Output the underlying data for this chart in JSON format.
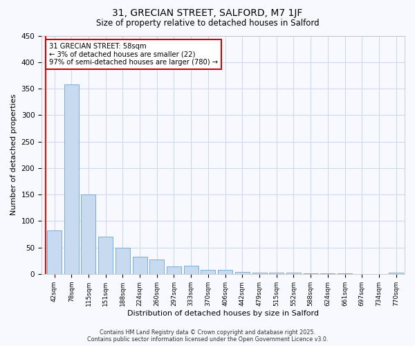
{
  "title1": "31, GRECIAN STREET, SALFORD, M7 1JF",
  "title2": "Size of property relative to detached houses in Salford",
  "xlabel": "Distribution of detached houses by size in Salford",
  "ylabel": "Number of detached properties",
  "categories": [
    "42sqm",
    "78sqm",
    "115sqm",
    "151sqm",
    "188sqm",
    "224sqm",
    "260sqm",
    "297sqm",
    "333sqm",
    "370sqm",
    "406sqm",
    "442sqm",
    "479sqm",
    "515sqm",
    "552sqm",
    "588sqm",
    "624sqm",
    "661sqm",
    "697sqm",
    "734sqm",
    "770sqm"
  ],
  "values": [
    82,
    358,
    150,
    71,
    49,
    33,
    27,
    14,
    16,
    7,
    7,
    4,
    2,
    2,
    2,
    1,
    1,
    1,
    0,
    0,
    3
  ],
  "bar_color": "#c8daf0",
  "bar_edge_color": "#7aadd4",
  "annotation_line1": "31 GRECIAN STREET: 58sqm",
  "annotation_line2": "← 3% of detached houses are smaller (22)",
  "annotation_line3": "97% of semi-detached houses are larger (780) →",
  "annotation_box_color": "#ffffff",
  "annotation_border_color": "#cc0000",
  "ylim": [
    0,
    450
  ],
  "background_color": "#f7f9ff",
  "grid_color": "#d0d8ee",
  "footer1": "Contains HM Land Registry data © Crown copyright and database right 2025.",
  "footer2": "Contains public sector information licensed under the Open Government Licence v3.0."
}
